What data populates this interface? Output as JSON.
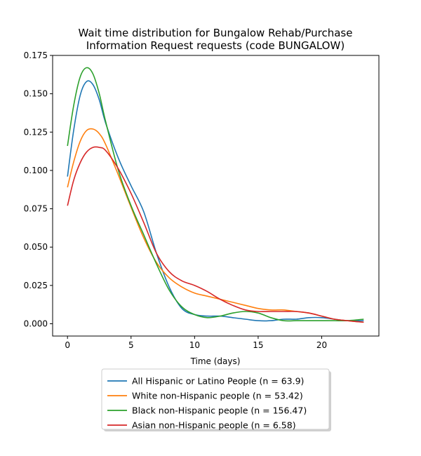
{
  "chart_data": {
    "type": "line",
    "title": [
      "Wait time distribution  for Bungalow Rehab/Purchase",
      "Information Request  requests (code BUNGALOW)"
    ],
    "xlabel": "Time (days)",
    "ylabel": "",
    "xlim": [
      -1.17,
      24.5
    ],
    "ylim": [
      -0.008,
      0.175
    ],
    "xticks": [
      0,
      5,
      10,
      15,
      20
    ],
    "yticks": [
      0.0,
      0.025,
      0.05,
      0.075,
      0.1,
      0.125,
      0.15,
      0.175
    ],
    "ytick_labels": [
      "0.000",
      "0.025",
      "0.050",
      "0.075",
      "0.100",
      "0.125",
      "0.150",
      "0.175"
    ],
    "legend_position": "below",
    "series": [
      {
        "name": "All Hispanic or Latino People (n = 63.9)",
        "color": "#1f77b4",
        "points": [
          [
            0,
            0.096
          ],
          [
            0.5,
            0.127
          ],
          [
            1,
            0.149
          ],
          [
            1.5,
            0.158
          ],
          [
            2,
            0.156
          ],
          [
            2.5,
            0.146
          ],
          [
            3,
            0.131
          ],
          [
            4,
            0.108
          ],
          [
            5,
            0.09
          ],
          [
            6,
            0.073
          ],
          [
            7,
            0.046
          ],
          [
            8,
            0.024
          ],
          [
            9,
            0.01
          ],
          [
            10,
            0.006
          ],
          [
            11,
            0.005
          ],
          [
            12,
            0.005
          ],
          [
            13,
            0.004
          ],
          [
            14,
            0.003
          ],
          [
            15,
            0.002
          ],
          [
            16,
            0.002
          ],
          [
            17,
            0.003
          ],
          [
            18,
            0.003
          ],
          [
            19,
            0.004
          ],
          [
            20,
            0.004
          ],
          [
            21,
            0.003
          ],
          [
            22,
            0.002
          ],
          [
            23.3,
            0.002
          ]
        ]
      },
      {
        "name": "White non-Hispanic people (n = 53.42)",
        "color": "#ff7f0e",
        "points": [
          [
            0,
            0.089
          ],
          [
            0.5,
            0.106
          ],
          [
            1,
            0.119
          ],
          [
            1.5,
            0.126
          ],
          [
            2,
            0.127
          ],
          [
            2.5,
            0.124
          ],
          [
            3,
            0.117
          ],
          [
            4,
            0.097
          ],
          [
            5,
            0.076
          ],
          [
            6,
            0.056
          ],
          [
            7,
            0.04
          ],
          [
            8,
            0.03
          ],
          [
            9,
            0.024
          ],
          [
            10,
            0.02
          ],
          [
            11,
            0.018
          ],
          [
            12,
            0.016
          ],
          [
            13,
            0.014
          ],
          [
            14,
            0.012
          ],
          [
            15,
            0.01
          ],
          [
            16,
            0.009
          ],
          [
            17,
            0.009
          ],
          [
            18,
            0.008
          ],
          [
            19,
            0.007
          ],
          [
            20,
            0.005
          ],
          [
            21,
            0.003
          ],
          [
            22,
            0.002
          ],
          [
            23.3,
            0.001
          ]
        ]
      },
      {
        "name": "Black non-Hispanic people (n = 156.47)",
        "color": "#2ca02c",
        "points": [
          [
            0,
            0.116
          ],
          [
            0.5,
            0.143
          ],
          [
            1,
            0.161
          ],
          [
            1.5,
            0.167
          ],
          [
            2,
            0.163
          ],
          [
            2.5,
            0.15
          ],
          [
            3,
            0.132
          ],
          [
            4,
            0.1
          ],
          [
            5,
            0.077
          ],
          [
            6,
            0.058
          ],
          [
            7,
            0.039
          ],
          [
            8,
            0.022
          ],
          [
            9,
            0.011
          ],
          [
            10,
            0.006
          ],
          [
            11,
            0.004
          ],
          [
            12,
            0.005
          ],
          [
            13,
            0.007
          ],
          [
            14,
            0.008
          ],
          [
            15,
            0.007
          ],
          [
            16,
            0.004
          ],
          [
            17,
            0.002
          ],
          [
            18,
            0.002
          ],
          [
            19,
            0.002
          ],
          [
            20,
            0.002
          ],
          [
            21,
            0.002
          ],
          [
            22,
            0.002
          ],
          [
            23.3,
            0.003
          ]
        ]
      },
      {
        "name": "Asian non-Hispanic people (n = 6.58)",
        "color": "#d62728",
        "points": [
          [
            0,
            0.077
          ],
          [
            0.5,
            0.094
          ],
          [
            1,
            0.105
          ],
          [
            1.5,
            0.112
          ],
          [
            2,
            0.115
          ],
          [
            2.5,
            0.115
          ],
          [
            3,
            0.113
          ],
          [
            4,
            0.101
          ],
          [
            5,
            0.085
          ],
          [
            6,
            0.066
          ],
          [
            7,
            0.046
          ],
          [
            8,
            0.034
          ],
          [
            9,
            0.028
          ],
          [
            10,
            0.025
          ],
          [
            11,
            0.021
          ],
          [
            12,
            0.016
          ],
          [
            13,
            0.012
          ],
          [
            14,
            0.009
          ],
          [
            15,
            0.008
          ],
          [
            16,
            0.008
          ],
          [
            17,
            0.008
          ],
          [
            18,
            0.008
          ],
          [
            19,
            0.007
          ],
          [
            20,
            0.005
          ],
          [
            21,
            0.003
          ],
          [
            22,
            0.002
          ],
          [
            23.3,
            0.001
          ]
        ]
      }
    ]
  }
}
